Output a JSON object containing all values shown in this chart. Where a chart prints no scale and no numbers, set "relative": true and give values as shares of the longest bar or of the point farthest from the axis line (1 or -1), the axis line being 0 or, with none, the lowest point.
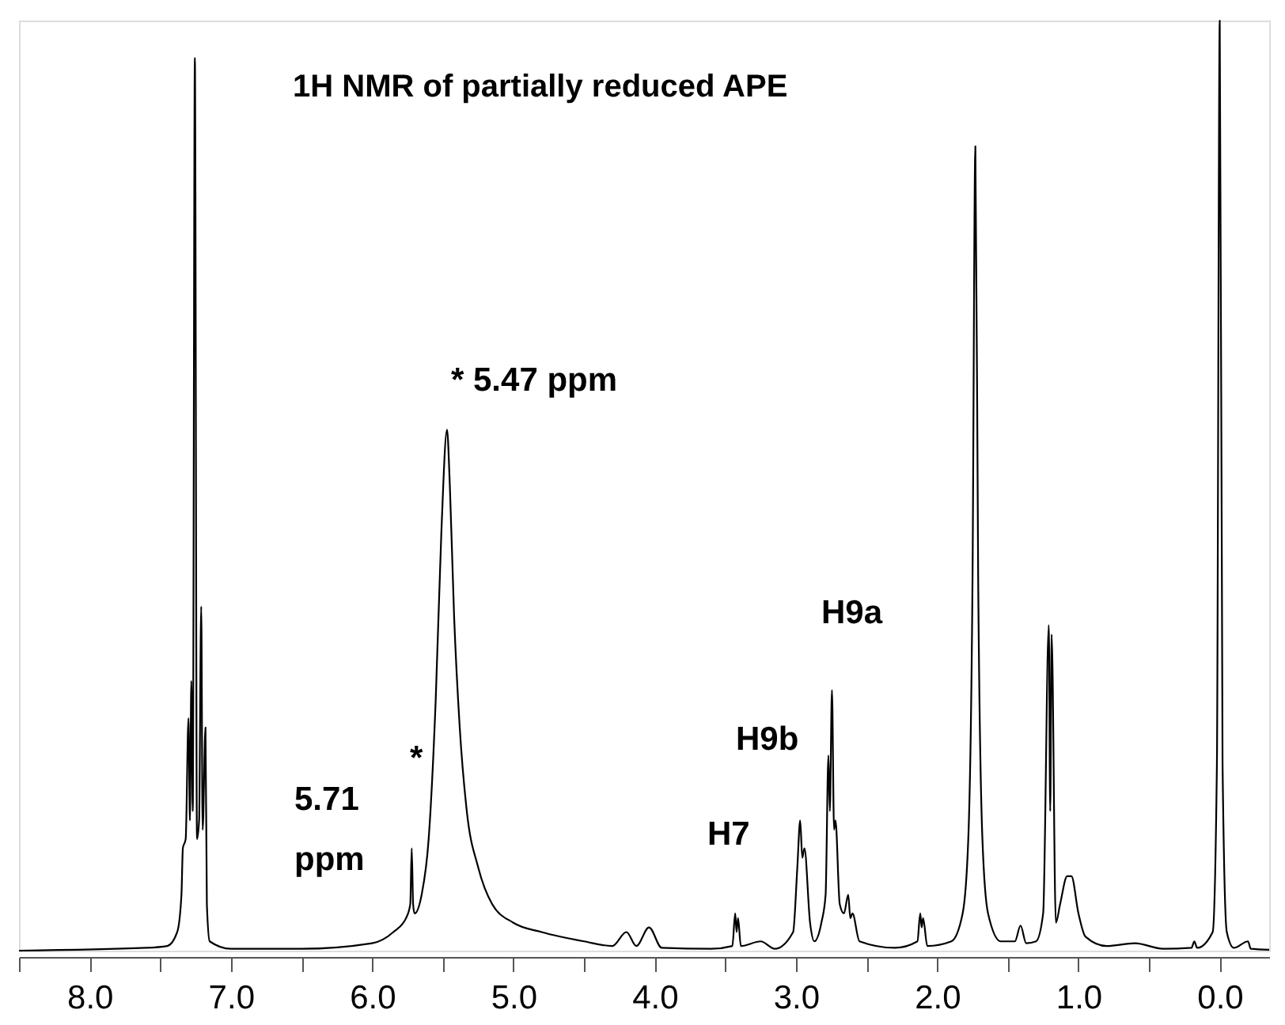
{
  "chart_data": {
    "type": "line",
    "title": "1H NMR of partially reduced APE",
    "relative": true,
    "xlim": [
      8.5,
      -0.35
    ],
    "xticks": [
      {
        "value": 8.5,
        "label": null
      },
      {
        "value": 8,
        "label": "8.0"
      },
      {
        "value": 7.5,
        "label": null
      },
      {
        "value": 7,
        "label": "7.0"
      },
      {
        "value": 6.5,
        "label": null
      },
      {
        "value": 6,
        "label": "6.0"
      },
      {
        "value": 5.5,
        "label": null
      },
      {
        "value": 5,
        "label": "5.0"
      },
      {
        "value": 4.5,
        "label": null
      },
      {
        "value": 4,
        "label": "4.0"
      },
      {
        "value": 3.5,
        "label": null
      },
      {
        "value": 3,
        "label": "3.0"
      },
      {
        "value": 2.5,
        "label": null
      },
      {
        "value": 2,
        "label": "2.0"
      },
      {
        "value": 1.5,
        "label": null
      },
      {
        "value": 1,
        "label": "1.0"
      },
      {
        "value": 0.5,
        "label": null
      },
      {
        "value": 0,
        "label": "0.0"
      }
    ],
    "tick_labels": "x",
    "grid": false,
    "series": [
      {
        "color": "#000000",
        "x": [
          8.5,
          7.6,
          7.45,
          7.38,
          7.35,
          7.34,
          7.32,
          7.3,
          7.29,
          7.28,
          7.27,
          7.255,
          7.24,
          7.225,
          7.21,
          7.2,
          7.18,
          7.17,
          7.15,
          7.0,
          6.5,
          6.0,
          5.85,
          5.76,
          5.73,
          5.72,
          5.71,
          5.7,
          5.65,
          5.6,
          5.55,
          5.51,
          5.47,
          5.45,
          5.42,
          5.38,
          5.33,
          5.25,
          5.15,
          5.0,
          4.8,
          4.5,
          4.3,
          4.2,
          4.13,
          4.04,
          3.95,
          3.6,
          3.45,
          3.43,
          3.42,
          3.41,
          3.39,
          3.25,
          3.15,
          3.02,
          2.99,
          2.97,
          2.955,
          2.94,
          2.9,
          2.87,
          2.82,
          2.79,
          2.77,
          2.76,
          2.745,
          2.73,
          2.72,
          2.69,
          2.66,
          2.63,
          2.615,
          2.6,
          2.55,
          2.3,
          2.14,
          2.12,
          2.11,
          2.1,
          2.07,
          1.9,
          1.82,
          1.78,
          1.75,
          1.73,
          1.71,
          1.68,
          1.64,
          1.55,
          1.45,
          1.41,
          1.37,
          1.3,
          1.25,
          1.21,
          1.2,
          1.19,
          1.16,
          1.13,
          1.08,
          1.05,
          1.0,
          0.95,
          0.8,
          0.6,
          0.4,
          0.2,
          0.18,
          0.16,
          0.05,
          0.02,
          0.0,
          -0.02,
          -0.05,
          -0.1,
          -0.2,
          -0.22,
          -0.35
        ],
        "values": [
          0.0,
          0.003,
          0.005,
          0.02,
          0.06,
          0.11,
          0.12,
          0.25,
          0.14,
          0.29,
          0.15,
          0.96,
          0.12,
          0.14,
          0.37,
          0.13,
          0.24,
          0.05,
          0.01,
          0.002,
          0.002,
          0.008,
          0.02,
          0.035,
          0.05,
          0.11,
          0.05,
          0.04,
          0.06,
          0.12,
          0.27,
          0.45,
          0.56,
          0.5,
          0.36,
          0.24,
          0.15,
          0.09,
          0.05,
          0.03,
          0.02,
          0.01,
          0.005,
          0.02,
          0.005,
          0.025,
          0.003,
          0.002,
          0.005,
          0.04,
          0.02,
          0.035,
          0.005,
          0.01,
          0.002,
          0.02,
          0.09,
          0.14,
          0.1,
          0.11,
          0.03,
          0.01,
          0.03,
          0.06,
          0.21,
          0.15,
          0.28,
          0.13,
          0.14,
          0.05,
          0.04,
          0.06,
          0.035,
          0.04,
          0.01,
          0.003,
          0.01,
          0.04,
          0.025,
          0.035,
          0.005,
          0.01,
          0.04,
          0.12,
          0.4,
          0.865,
          0.4,
          0.12,
          0.04,
          0.01,
          0.01,
          0.027,
          0.008,
          0.01,
          0.04,
          0.35,
          0.15,
          0.34,
          0.03,
          0.05,
          0.08,
          0.08,
          0.04,
          0.015,
          0.005,
          0.008,
          0.002,
          0.003,
          0.01,
          0.003,
          0.02,
          0.2,
          1.0,
          0.2,
          0.02,
          0.003,
          0.01,
          0.002,
          0.001
        ]
      }
    ],
    "annotations": [
      "*  5.47 ppm",
      "5.71\nppm",
      "*",
      "H7",
      "H9b",
      "H9a"
    ]
  }
}
